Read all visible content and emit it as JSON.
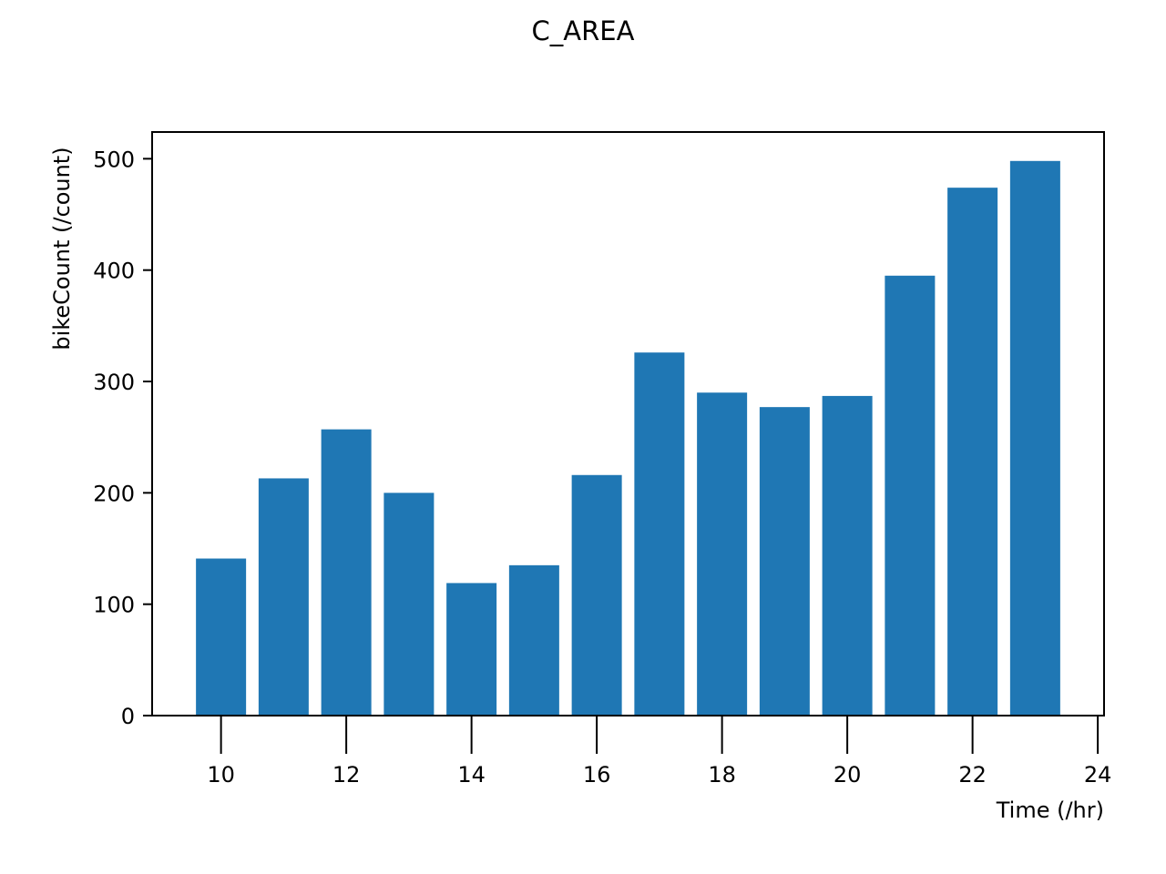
{
  "chart_data": {
    "type": "bar",
    "title": "C_AREA",
    "xlabel": "Time (/hr)",
    "ylabel": "bikeCount (/count)",
    "x": [
      10,
      11,
      12,
      13,
      14,
      15,
      16,
      17,
      18,
      19,
      20,
      21,
      22,
      23
    ],
    "values": [
      141,
      213,
      257,
      200,
      119,
      135,
      216,
      326,
      290,
      277,
      287,
      395,
      474,
      498
    ],
    "bar_width": 0.8,
    "xlim": [
      8.9,
      24.1
    ],
    "ylim": [
      0,
      524
    ],
    "xticks": [
      10,
      12,
      14,
      16,
      18,
      20,
      22,
      24
    ],
    "yticks": [
      0,
      100,
      200,
      300,
      400,
      500
    ],
    "grid": false,
    "legend": false,
    "bar_color": "#1f77b4"
  }
}
